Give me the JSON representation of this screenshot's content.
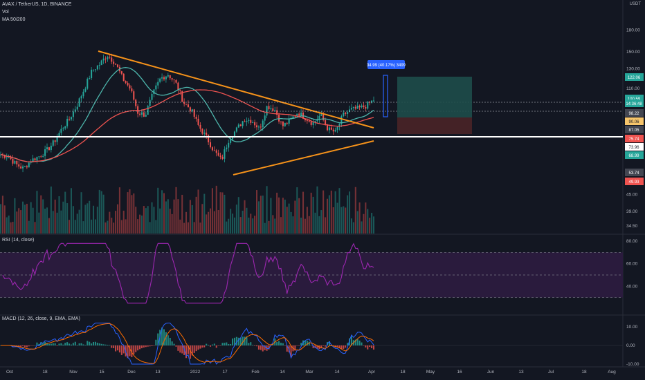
{
  "header": {
    "symbol_line": "AVAX / TetherUS, 1D, BINANCE",
    "vol_label": "Vol",
    "ma_label": "MA 50/200",
    "currency": "USDT"
  },
  "panes": {
    "rsi_label": "RSI (14, close)",
    "macd_label": "MACD (12, 26, close, 9, EMA, EMA)"
  },
  "colors": {
    "background": "#131722",
    "up": "#26a69a",
    "down": "#ef5350",
    "ma50": "#4db6ac",
    "ma200": "#ef5350",
    "trendline": "#f7931a",
    "support": "#ffffff",
    "rsi": "#9c27b0",
    "rsi_band": "#2a1b3d",
    "macd": "#2962ff",
    "signal": "#ff6d00",
    "target_zone": "#1e4d4a",
    "stop_zone": "#4a2327",
    "measure": "#2962ff"
  },
  "chart_data": {
    "type": "candlestick",
    "price_axis": {
      "ticks": [
        "180.00",
        "150.00",
        "130.00",
        "110.00",
        "45.00",
        "39.00",
        "34.50"
      ],
      "scale": "log"
    },
    "price_tags": [
      {
        "label": "122.06",
        "color": "#26a69a"
      },
      {
        "label": "100.59",
        "color": "#26a69a"
      },
      {
        "label": "14:36:48",
        "color": "#26a69a"
      },
      {
        "label": "98.22",
        "color": "#434651"
      },
      {
        "label": "90.06",
        "color": "#f7c56b"
      },
      {
        "label": "87.05",
        "color": "#434651"
      },
      {
        "label": "75.74",
        "color": "#ef5350"
      },
      {
        "label": "73.96",
        "color": "#ffffff"
      },
      {
        "label": "68.99",
        "color": "#26a69a"
      },
      {
        "label": "53.74",
        "color": "#434651"
      },
      {
        "label": "49.93",
        "color": "#ef5350"
      }
    ],
    "time_axis": [
      "Oct",
      "18",
      "Nov",
      "15",
      "Dec",
      "13",
      "2022",
      "17",
      "Feb",
      "14",
      "Mar",
      "14",
      "Apr",
      "18",
      "May",
      "16",
      "Jun",
      "13",
      "Jul",
      "18",
      "Aug"
    ],
    "close_path": [
      63,
      62,
      58,
      56,
      60,
      62,
      65,
      70,
      78,
      85,
      95,
      110,
      128,
      135,
      146,
      137,
      120,
      110,
      90,
      88,
      105,
      120,
      124,
      115,
      98,
      92,
      80,
      73,
      65,
      60,
      72,
      78,
      85,
      84,
      78,
      95,
      92,
      80,
      84,
      90,
      86,
      82,
      88,
      78,
      76,
      88,
      92,
      93,
      95,
      100
    ],
    "annotation": "34.99 (40.17%) 3499",
    "rsi_axis": [
      "80.00",
      "60.00",
      "40.00"
    ],
    "rsi_levels": [
      70,
      50,
      30
    ],
    "macd_axis": [
      "10.00",
      "0.00",
      "-10.00"
    ]
  }
}
